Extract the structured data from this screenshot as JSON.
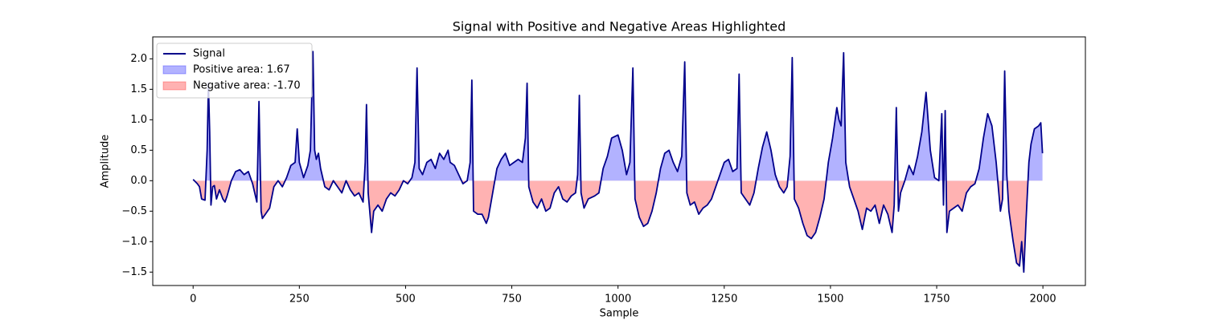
{
  "chart_data": {
    "type": "line",
    "title": "Signal with Positive and Negative Areas Highlighted",
    "xlabel": "Sample",
    "ylabel": "Amplitude",
    "x": [
      0,
      10,
      15,
      20,
      28,
      33,
      36,
      39,
      42,
      46,
      50,
      55,
      62,
      70,
      75,
      80,
      90,
      100,
      110,
      120,
      130,
      140,
      150,
      155,
      160,
      163,
      170,
      180,
      190,
      200,
      210,
      220,
      230,
      240,
      245,
      250,
      260,
      270,
      276,
      282,
      286,
      290,
      295,
      300,
      310,
      320,
      330,
      340,
      350,
      360,
      370,
      380,
      390,
      400,
      405,
      408,
      412,
      420,
      425,
      435,
      445,
      455,
      465,
      475,
      485,
      495,
      505,
      515,
      522,
      527,
      532,
      540,
      550,
      560,
      570,
      580,
      590,
      600,
      605,
      615,
      625,
      635,
      645,
      652,
      656,
      660,
      670,
      680,
      690,
      695,
      705,
      715,
      725,
      735,
      745,
      755,
      765,
      775,
      782,
      786,
      790,
      800,
      810,
      820,
      830,
      840,
      850,
      860,
      870,
      880,
      890,
      900,
      905,
      909,
      913,
      920,
      930,
      945,
      955,
      965,
      975,
      985,
      1000,
      1010,
      1020,
      1028,
      1035,
      1040,
      1050,
      1060,
      1070,
      1080,
      1090,
      1100,
      1110,
      1120,
      1130,
      1140,
      1150,
      1157,
      1162,
      1170,
      1180,
      1190,
      1200,
      1210,
      1220,
      1230,
      1240,
      1250,
      1260,
      1270,
      1280,
      1285,
      1290,
      1300,
      1310,
      1320,
      1330,
      1340,
      1350,
      1360,
      1370,
      1380,
      1390,
      1398,
      1405,
      1410,
      1415,
      1425,
      1435,
      1445,
      1455,
      1465,
      1475,
      1485,
      1495,
      1505,
      1515,
      1520,
      1525,
      1531,
      1536,
      1545,
      1555,
      1565,
      1575,
      1585,
      1595,
      1605,
      1615,
      1625,
      1635,
      1645,
      1650,
      1655,
      1660,
      1665,
      1675,
      1685,
      1695,
      1705,
      1715,
      1725,
      1735,
      1745,
      1755,
      1762,
      1766,
      1770,
      1774,
      1780,
      1790,
      1800,
      1810,
      1820,
      1830,
      1840,
      1850,
      1860,
      1870,
      1880,
      1890,
      1895,
      1900,
      1905,
      1910,
      1915,
      1920,
      1930,
      1938,
      1945,
      1950,
      1955,
      1960,
      1967,
      1972,
      1980,
      1990,
      1995,
      1999
    ],
    "series": [
      {
        "name": "Signal",
        "color": "#00008b",
        "values": [
          0.02,
          -0.05,
          -0.1,
          -0.3,
          -0.32,
          0.5,
          1.6,
          0.8,
          -0.4,
          -0.1,
          -0.08,
          -0.3,
          -0.15,
          -0.3,
          -0.35,
          -0.25,
          0.0,
          0.15,
          0.18,
          0.1,
          0.15,
          -0.05,
          -0.35,
          1.3,
          -0.5,
          -0.62,
          -0.55,
          -0.45,
          -0.1,
          0.0,
          -0.1,
          0.05,
          0.25,
          0.3,
          0.85,
          0.3,
          0.05,
          0.25,
          0.5,
          2.12,
          0.5,
          0.35,
          0.45,
          0.2,
          -0.1,
          -0.15,
          0.0,
          -0.1,
          -0.2,
          0.0,
          -0.15,
          -0.25,
          -0.2,
          -0.35,
          0.3,
          1.25,
          -0.2,
          -0.85,
          -0.5,
          -0.4,
          -0.5,
          -0.3,
          -0.2,
          -0.25,
          -0.15,
          0.0,
          -0.05,
          0.05,
          0.3,
          1.85,
          0.2,
          0.1,
          0.3,
          0.35,
          0.2,
          0.45,
          0.35,
          0.5,
          0.3,
          0.25,
          0.1,
          -0.05,
          0.0,
          0.3,
          1.65,
          -0.5,
          -0.55,
          -0.55,
          -0.7,
          -0.6,
          -0.2,
          0.2,
          0.35,
          0.45,
          0.25,
          0.3,
          0.35,
          0.3,
          0.7,
          1.6,
          -0.1,
          -0.35,
          -0.45,
          -0.3,
          -0.5,
          -0.45,
          -0.2,
          -0.1,
          -0.3,
          -0.35,
          -0.25,
          -0.2,
          0.1,
          1.4,
          -0.2,
          -0.45,
          -0.3,
          -0.25,
          -0.2,
          0.2,
          0.4,
          0.7,
          0.75,
          0.5,
          0.1,
          0.3,
          1.85,
          -0.3,
          -0.6,
          -0.75,
          -0.7,
          -0.5,
          -0.2,
          0.2,
          0.45,
          0.5,
          0.3,
          0.15,
          0.4,
          1.95,
          -0.2,
          -0.4,
          -0.35,
          -0.55,
          -0.45,
          -0.4,
          -0.3,
          -0.1,
          0.1,
          0.3,
          0.35,
          0.15,
          0.2,
          1.75,
          -0.2,
          -0.3,
          -0.4,
          -0.2,
          0.2,
          0.55,
          0.8,
          0.5,
          0.1,
          -0.1,
          -0.2,
          -0.1,
          0.4,
          2.02,
          -0.3,
          -0.45,
          -0.7,
          -0.9,
          -0.95,
          -0.85,
          -0.6,
          -0.3,
          0.3,
          0.7,
          1.2,
          1.0,
          0.9,
          2.1,
          0.3,
          -0.1,
          -0.3,
          -0.5,
          -0.8,
          -0.45,
          -0.5,
          -0.4,
          -0.7,
          -0.4,
          -0.55,
          -0.85,
          -0.4,
          1.2,
          -0.5,
          -0.2,
          0.0,
          0.25,
          0.1,
          0.4,
          0.8,
          1.45,
          0.5,
          0.05,
          0.0,
          1.1,
          -0.4,
          1.15,
          -0.85,
          -0.5,
          -0.45,
          -0.4,
          -0.5,
          -0.2,
          -0.1,
          -0.05,
          0.2,
          0.7,
          1.1,
          0.9,
          0.3,
          -0.1,
          -0.5,
          -0.3,
          1.8,
          0.1,
          -0.5,
          -1.0,
          -1.35,
          -1.4,
          -1.0,
          -1.5,
          -0.7,
          0.3,
          0.6,
          0.85,
          0.9,
          0.95,
          0.45
        ]
      }
    ],
    "fills": [
      {
        "name": "Positive area: 1.67",
        "color": "#0000ff"
      },
      {
        "name": "Negative area: -1.70",
        "color": "#ff0000"
      }
    ],
    "xlim": [
      -95,
      2100
    ],
    "ylim": [
      -1.72,
      2.36
    ],
    "xticks": [
      0,
      250,
      500,
      750,
      1000,
      1250,
      1500,
      1750,
      2000
    ],
    "yticks": [
      {
        "value": -1.5,
        "label": "−1.5"
      },
      {
        "value": -1.0,
        "label": "−1.0"
      },
      {
        "value": -0.5,
        "label": "−0.5"
      },
      {
        "value": 0,
        "label": "0.0"
      },
      {
        "value": 0.5,
        "label": "0.5"
      },
      {
        "value": 1.0,
        "label": "1.0"
      },
      {
        "value": 1.5,
        "label": "1.5"
      },
      {
        "value": 2.0,
        "label": "2.0"
      }
    ],
    "legend": "upper left"
  }
}
